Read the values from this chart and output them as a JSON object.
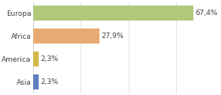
{
  "categories": [
    "Asia",
    "America",
    "Africa",
    "Europa"
  ],
  "values": [
    2.3,
    2.3,
    27.9,
    67.4
  ],
  "labels": [
    "2,3%",
    "2,3%",
    "27,9%",
    "67,4%"
  ],
  "bar_colors": [
    "#6080c0",
    "#d4b84a",
    "#e8aa72",
    "#b0c87a"
  ],
  "background_color": "#ffffff",
  "xlim": [
    0,
    78
  ],
  "bar_height": 0.65,
  "label_fontsize": 6.5,
  "tick_fontsize": 6.5,
  "grid_color": "#d8d8d8",
  "text_color": "#444444"
}
